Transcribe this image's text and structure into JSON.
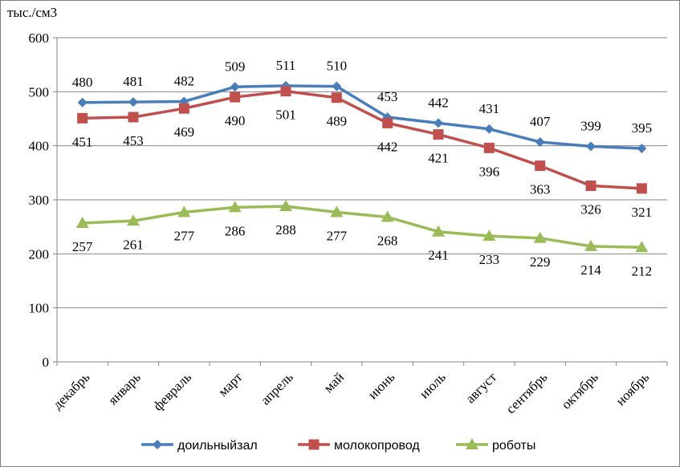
{
  "chart_data": {
    "type": "line",
    "unit_label": "тыс./см3",
    "categories": [
      "декабрь",
      "январь",
      "февраль",
      "март",
      "апрель",
      "май",
      "июнь",
      "июль",
      "август",
      "сентябрь",
      "октябрь",
      "ноябрь"
    ],
    "ylim": [
      0,
      600
    ],
    "yticks": [
      0,
      100,
      200,
      300,
      400,
      500,
      600
    ],
    "ytick_labels": [
      "0",
      "100",
      "200",
      "300",
      "400",
      "500",
      "600"
    ],
    "grid": true,
    "legend_position": "bottom",
    "series": [
      {
        "name": "доильныйзал",
        "color": "#4a7ebb",
        "marker": "diamond",
        "label_position": "above",
        "values": [
          480,
          481,
          482,
          509,
          511,
          510,
          453,
          442,
          431,
          407,
          399,
          395
        ]
      },
      {
        "name": "молокопровод",
        "color": "#c0504d",
        "marker": "square",
        "label_position": "below",
        "values": [
          451,
          453,
          469,
          490,
          501,
          489,
          442,
          421,
          396,
          363,
          326,
          321
        ]
      },
      {
        "name": "роботы",
        "color": "#9bbb59",
        "marker": "triangle",
        "label_position": "below",
        "values": [
          257,
          261,
          277,
          286,
          288,
          277,
          268,
          241,
          233,
          229,
          214,
          212
        ]
      }
    ]
  }
}
